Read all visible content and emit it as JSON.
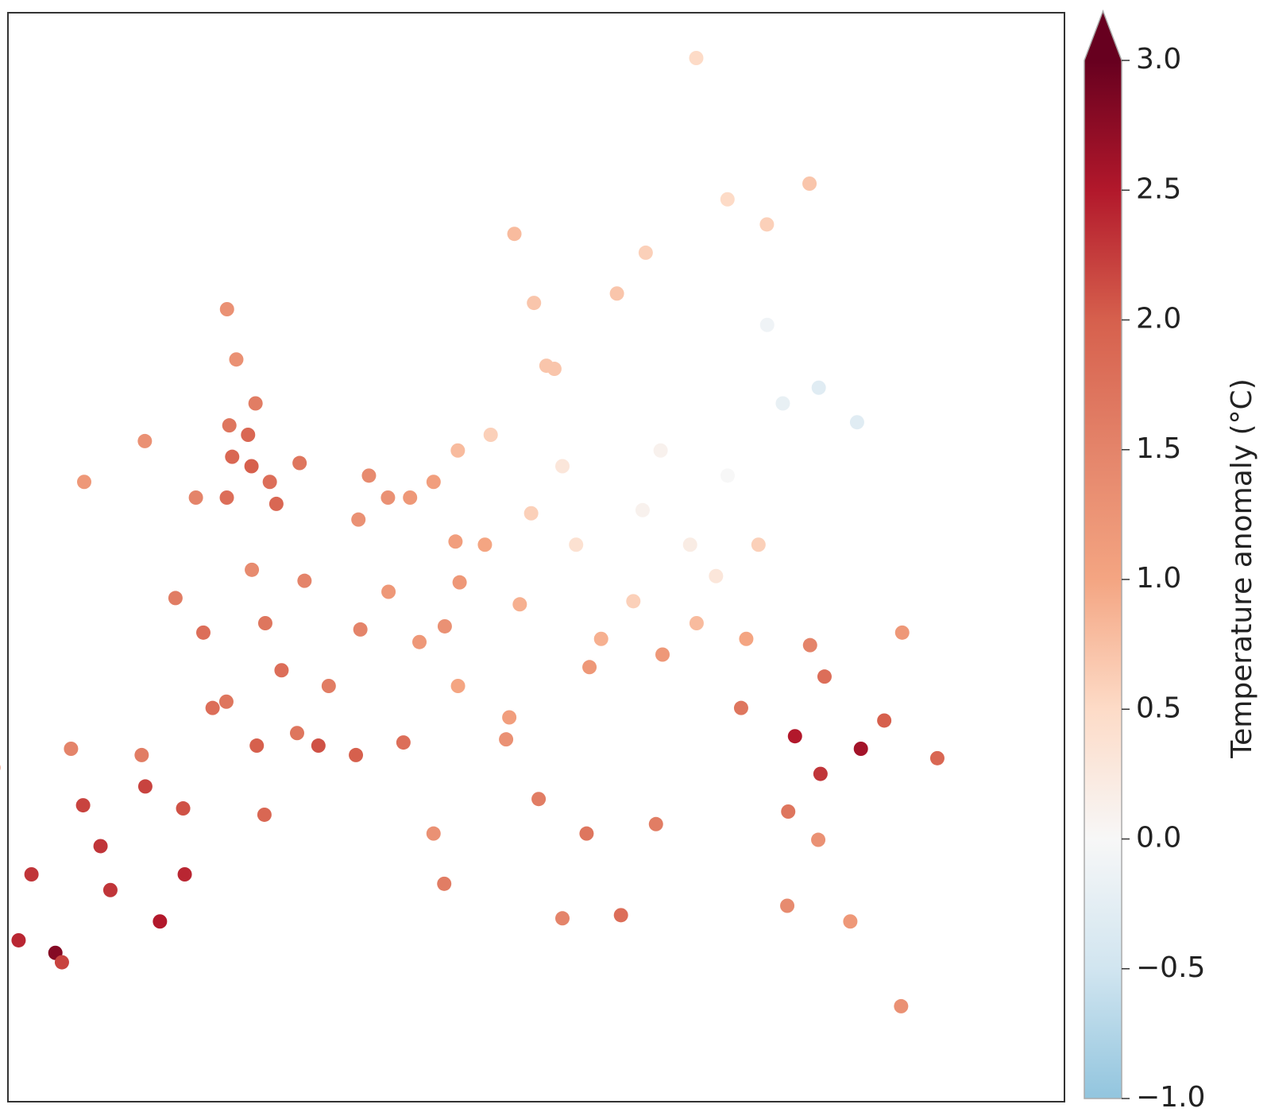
{
  "chart_data": {
    "type": "scatter",
    "colorbar_label": "Temperature anomaly (°C)",
    "clim": [
      -1,
      3
    ],
    "extend": "max",
    "colormap": [
      "#92c5de",
      "#d1e5f0",
      "#f7f7f7",
      "#fddbc7",
      "#f4a582",
      "#e4846a",
      "#d6604d",
      "#b2182b",
      "#67001f"
    ],
    "cticks": [
      {
        "value": -1,
        "label": "−1.0"
      },
      {
        "value": -0.5,
        "label": "−0.5"
      },
      {
        "value": 0,
        "label": "0.0"
      },
      {
        "value": 0.5,
        "label": "0.5"
      },
      {
        "value": 1,
        "label": "1.0"
      },
      {
        "value": 1.5,
        "label": "1.5"
      },
      {
        "value": 2,
        "label": "2.0"
      },
      {
        "value": 2.5,
        "label": "2.5"
      },
      {
        "value": 3,
        "label": "3.0"
      }
    ],
    "lon": [
      -1.5,
      -1,
      0,
      -2,
      -1.8,
      0.5,
      -2.5,
      -3,
      -4.2,
      -6.3,
      -8.5,
      -1.5,
      1.2,
      -3.2,
      4.5,
      5.5,
      4.3,
      6.5,
      7.5,
      8.5,
      10,
      2.35,
      1,
      -1.5,
      -3,
      0,
      2,
      4,
      5,
      6,
      3,
      1.5,
      5.4,
      7.2,
      -0.5,
      3.9,
      0,
      13.4,
      12,
      10,
      8.7,
      9,
      11.6,
      14,
      16.4,
      15,
      17,
      19,
      21,
      18,
      20,
      22,
      14.5,
      19,
      21,
      17.5,
      7.5,
      8.5,
      9.2,
      11.3,
      11.2,
      12.5,
      14.3,
      16.9,
      15.5,
      13.4,
      9.1,
      8.6,
      26.1,
      24,
      23.6,
      27.5,
      25,
      23.3,
      27.9,
      22.5,
      20.5,
      21.9,
      22.9,
      23.7,
      21.5,
      25.1,
      -3.7,
      -5.9,
      -4.5,
      -4.2,
      -0.4,
      -1,
      2.2,
      -0.9,
      -9.1,
      -8.6,
      -8.5,
      -5.7,
      -2.9,
      -6,
      -4.7,
      -3,
      -7,
      -2.5,
      -6.8,
      18,
      11.9,
      13,
      10.7,
      12.6,
      16.3,
      25,
      24,
      26,
      27.5,
      24.1,
      28,
      23,
      22.5
    ],
    "lat": [
      53.5,
      52.5,
      52,
      52.8,
      51.5,
      51.3,
      53.8,
      55.9,
      57.5,
      53.3,
      52,
      54.5,
      52.6,
      51.5,
      52.2,
      51.5,
      50.8,
      51.5,
      52,
      53,
      53.5,
      48.85,
      47.5,
      47.2,
      48.3,
      45,
      46,
      45.5,
      47.3,
      48.5,
      44,
      43.6,
      43.3,
      43.7,
      44.8,
      43.6,
      49.2,
      52.5,
      51,
      50,
      50.1,
      48.8,
      48.1,
      50,
      48.2,
      47,
      51.1,
      50,
      52.2,
      53,
      49,
      50,
      46.1,
      47.5,
      47,
      46.5,
      46.9,
      47.4,
      45.5,
      44.5,
      43.8,
      41.9,
      40.8,
      41.1,
      38.2,
      38.1,
      39.2,
      40.8,
      44.4,
      45.8,
      46.8,
      47.2,
      43.5,
      42.7,
      43.2,
      43.9,
      44.8,
      41.5,
      40.6,
      38,
      38.5,
      35.3,
      40.4,
      37.4,
      37,
      36.7,
      39.5,
      38,
      41.4,
      41.6,
      38.7,
      41.1,
      42.9,
      43.5,
      43.3,
      39.5,
      41.7,
      39,
      38,
      42.3,
      36.8,
      59.3,
      57.7,
      55.6,
      59.9,
      55.7,
      58,
      60.2,
      57,
      55,
      53.9,
      54.5,
      61.5,
      61,
      65.5
    ],
    "values": [
      1.9,
      2.0,
      1.8,
      1.9,
      1.8,
      1.9,
      1.7,
      1.3,
      1.3,
      1.3,
      1.2,
      1.6,
      1.7,
      1.5,
      1.4,
      1.3,
      1.3,
      1.2,
      1.1,
      0.8,
      0.6,
      1.5,
      1.7,
      1.8,
      1.6,
      1.7,
      1.8,
      1.6,
      1.5,
      1.2,
      1.7,
      2.0,
      2.0,
      1.8,
      1.8,
      2.1,
      1.4,
      0.3,
      0.6,
      1.0,
      1.1,
      1.2,
      0.9,
      0.4,
      0.6,
      0.9,
      0.1,
      0.2,
      0,
      0.1,
      0.3,
      0.6,
      1.2,
      0.8,
      1.0,
      1.2,
      1.2,
      1.3,
      1.0,
      1.1,
      1.3,
      1.6,
      1.7,
      1.6,
      1.8,
      1.5,
      1.6,
      1.3,
      2.0,
      1.8,
      1.5,
      1.2,
      2.6,
      2.3,
      1.9,
      2.5,
      1.7,
      1.7,
      1.3,
      1.2,
      1.4,
      1.3,
      2.3,
      2.4,
      2.8,
      2.2,
      2.4,
      2.5,
      1.9,
      2.1,
      1.7,
      1.6,
      1.3,
      1.5,
      1.6,
      2.3,
      2.2,
      2.3,
      2.0,
      2.2,
      1.3,
      0.6,
      0.7,
      0.7,
      0.8,
      0.7,
      0.7,
      0.6,
      -0.1,
      -0.3,
      -0.3,
      -0.2,
      0.7,
      0.5,
      0.5
    ]
  }
}
